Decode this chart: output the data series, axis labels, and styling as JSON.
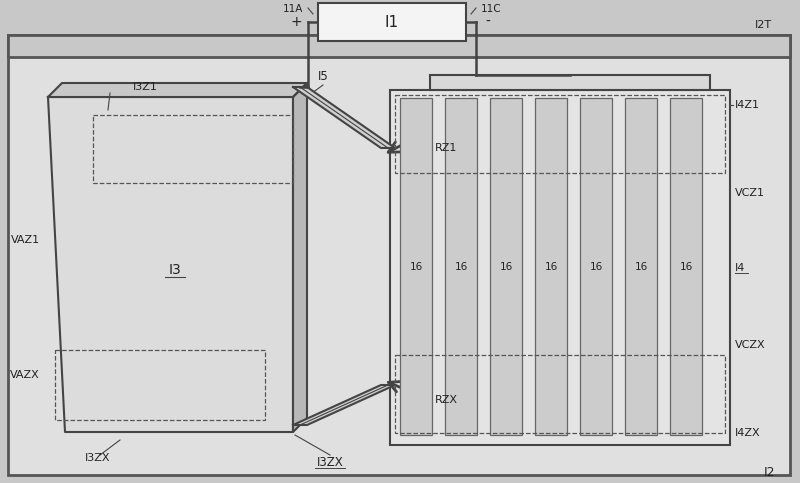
{
  "bg_outer": "#c8c8c8",
  "bg_inner": "#e8e8e8",
  "lc": "#444444",
  "lc_light": "#888888",
  "fc_plate": "#e0e0e0",
  "fc_plate_side": "#c8c8c8",
  "fc_plate_top": "#b8b8b8",
  "fc_cathode_bg": "#e8e8e8",
  "fc_power": "#f4f4f4",
  "labels": {
    "I1": "I1",
    "I2": "I2",
    "I3": "I3",
    "I4": "I4",
    "I5": "I5",
    "plate": "16",
    "I2T": "I2T",
    "I3Z1": "I3Z1",
    "I3ZX": "I3ZX",
    "I4Z1": "I4Z1",
    "I4ZX": "I4ZX",
    "VAZ1": "VAZ1",
    "VAZX": "VAZX",
    "VCZ1": "VCZ1",
    "VCZX": "VCZX",
    "RZ1": "RZ1",
    "RZX": "RZX",
    "plus": "+",
    "minus": "-",
    "11A": "11A",
    "11C": "11C"
  },
  "figsize": [
    8.0,
    4.83
  ],
  "dpi": 100
}
